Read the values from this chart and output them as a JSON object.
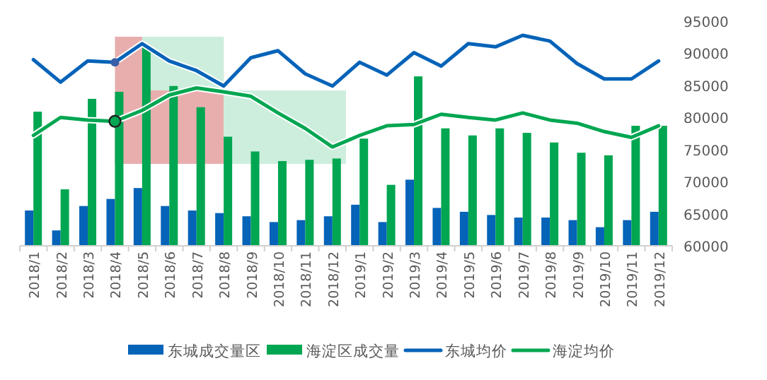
{
  "chart_data": {
    "type": "bar",
    "categories": [
      "2018/1",
      "2018/2",
      "2018/3",
      "2018/4",
      "2018/5",
      "2018/6",
      "2018/7",
      "2018/8",
      "2018/9",
      "2018/10",
      "2018/11",
      "2018/12",
      "2019/1",
      "2019/2",
      "2019/3",
      "2019/4",
      "2019/5",
      "2019/6",
      "2019/7",
      "2019/8",
      "2019/9",
      "2019/10",
      "2019/11",
      "2019/12"
    ],
    "series": [
      {
        "name": "东城成交量区",
        "color": "#0563b8",
        "values": [
          65500,
          62400,
          66200,
          67300,
          69000,
          66200,
          65500,
          65100,
          64600,
          63700,
          64000,
          64600,
          66400,
          63700,
          70300,
          65900,
          65300,
          64800,
          64400,
          64400,
          64000,
          62900,
          64000,
          65300
        ]
      },
      {
        "name": "海淀区成交量",
        "color": "#00a651",
        "values": [
          80900,
          68800,
          82900,
          84000,
          91200,
          84900,
          81600,
          77000,
          74700,
          73200,
          73400,
          73600,
          76700,
          69500,
          86400,
          78300,
          77200,
          78300,
          77600,
          76100,
          74500,
          74100,
          78700,
          78700
        ]
      },
      {
        "name": "东城均价",
        "type": "line",
        "color": "#0563b8",
        "values": [
          89000,
          85500,
          88800,
          88600,
          91500,
          88800,
          87300,
          84900,
          89300,
          90400,
          86800,
          84900,
          88600,
          86600,
          90100,
          88000,
          91500,
          91000,
          92800,
          91900,
          88400,
          86000,
          86000,
          88800
        ]
      },
      {
        "name": "海淀均价",
        "type": "line",
        "color": "#00a651",
        "values": [
          77200,
          80000,
          79600,
          79400,
          81100,
          83500,
          84600,
          84000,
          83300,
          80700,
          78300,
          75400,
          77200,
          78700,
          78900,
          80500,
          80000,
          79600,
          80700,
          79600,
          79100,
          77800,
          76900,
          78700
        ]
      }
    ],
    "ylim": [
      60000,
      95000
    ],
    "yticks": [
      60000,
      65000,
      70000,
      75000,
      80000,
      85000,
      90000,
      95000
    ],
    "legend": "bottom"
  }
}
